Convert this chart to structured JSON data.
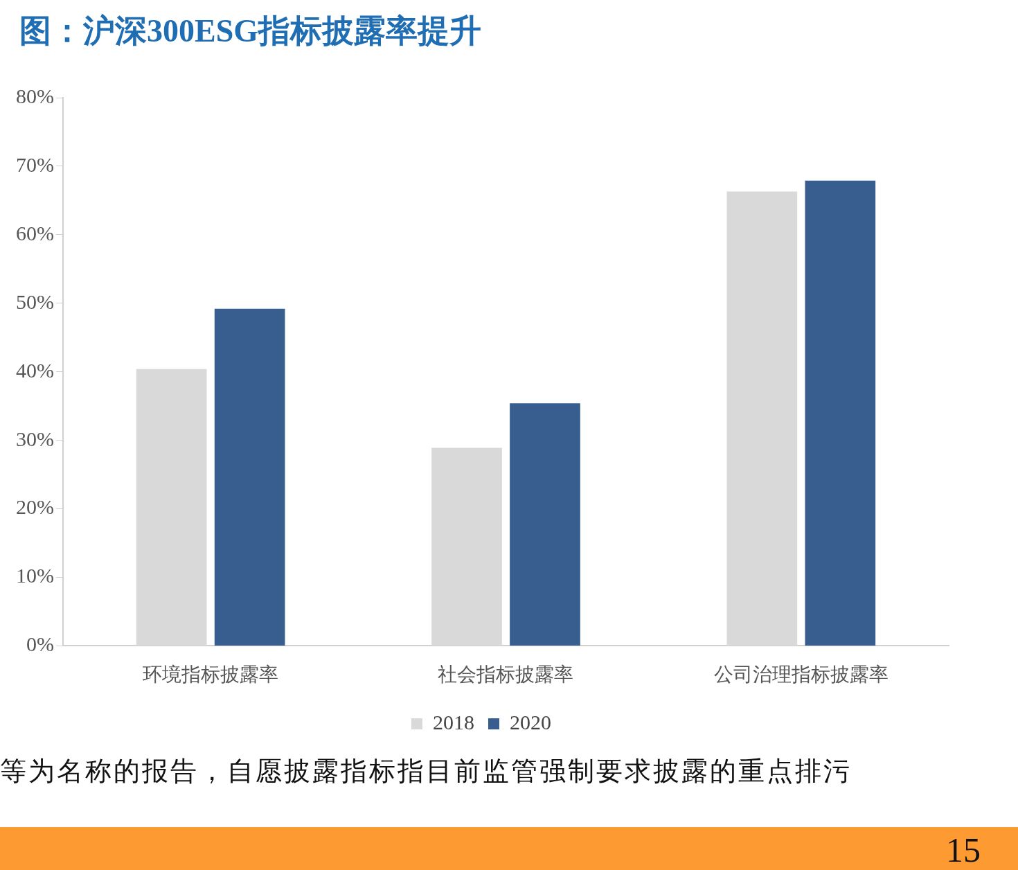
{
  "chart_data": {
    "type": "bar",
    "title": "图：沪深300ESG指标披露率提升",
    "categories": [
      "环境指标披露率",
      "社会指标披露率",
      "公司治理指标披露率"
    ],
    "series": [
      {
        "name": "2018",
        "color": "#d9d9d9",
        "values": [
          40.4,
          28.9,
          66.3
        ]
      },
      {
        "name": "2020",
        "color": "#375e8f",
        "values": [
          49.2,
          35.4,
          67.9
        ]
      }
    ],
    "ylim": [
      0,
      80
    ],
    "yticks": [
      {
        "value": 0,
        "label": "0%"
      },
      {
        "value": 10,
        "label": "10%"
      },
      {
        "value": 20,
        "label": "20%"
      },
      {
        "value": 30,
        "label": "30%"
      },
      {
        "value": 40,
        "label": "40%"
      },
      {
        "value": 50,
        "label": "50%"
      },
      {
        "value": 60,
        "label": "60%"
      },
      {
        "value": 70,
        "label": "70%"
      },
      {
        "value": 80,
        "label": "80%"
      }
    ],
    "grid": false,
    "legend": "bottom",
    "annotations": [
      "等为名称的报告，自愿披露指标指目前监管强制要求披露的重点排污",
      "15"
    ]
  }
}
